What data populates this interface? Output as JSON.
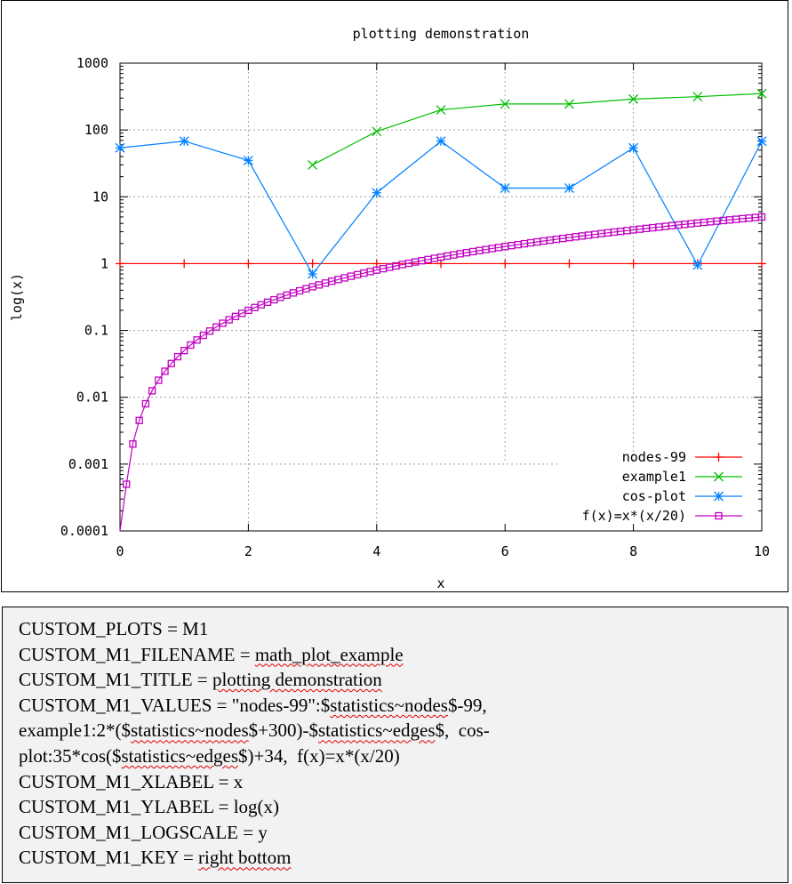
{
  "chart_data": {
    "type": "line",
    "title": "plotting demonstration",
    "xlabel": "x",
    "ylabel": "log(x)",
    "xlim": [
      0,
      10
    ],
    "ylim": [
      0.0001,
      1000
    ],
    "yscale": "log",
    "grid": true,
    "legend_position": "bottom-right",
    "x_ticks": [
      "0",
      "2",
      "4",
      "6",
      "8",
      "10"
    ],
    "y_ticks": [
      "0.0001",
      "0.001",
      "0.01",
      "0.1",
      "1",
      "10",
      "100",
      "1000"
    ],
    "series": [
      {
        "name": "nodes-99",
        "color": "#ff0000",
        "marker": "plus",
        "x": [
          0,
          1,
          2,
          3,
          4,
          5,
          6,
          7,
          8,
          9,
          10
        ],
        "y": [
          1,
          1,
          1,
          1,
          1,
          1,
          1,
          1,
          1,
          1,
          1
        ]
      },
      {
        "name": "example1",
        "color": "#00c000",
        "marker": "cross",
        "x": [
          3,
          4,
          5,
          6,
          7,
          8,
          9,
          10
        ],
        "y": [
          30,
          95,
          200,
          245,
          245,
          290,
          315,
          350
        ]
      },
      {
        "name": "cos-plot",
        "color": "#0080ff",
        "marker": "star",
        "x": [
          0,
          1,
          2,
          3,
          4,
          5,
          6,
          7,
          8,
          9,
          10
        ],
        "y": [
          54,
          68,
          35,
          0.7,
          11.5,
          68,
          13.5,
          13.5,
          54,
          0.95,
          68
        ]
      },
      {
        "name": "f(x)=x*(x/20)",
        "color": "#c000c0",
        "marker": "square",
        "function": "x*(x/20)",
        "samples": 100
      }
    ]
  },
  "config": {
    "lines": [
      [
        {
          "t": "CUSTOM_PLOTS = M1"
        }
      ],
      [
        {
          "t": "CUSTOM_M1_FILENAME = "
        },
        {
          "t": "math_plot_example",
          "s": true
        }
      ],
      [
        {
          "t": "CUSTOM_M1_TITLE = "
        },
        {
          "t": "plotting demonstration",
          "s": true
        }
      ],
      [
        {
          "t": "CUSTOM_M1_VALUES = \"nodes-99\":$"
        },
        {
          "t": "statistics~nodes",
          "s": true
        },
        {
          "t": "$-99,"
        }
      ],
      [
        {
          "t": "example1:2*($"
        },
        {
          "t": "statistics~nodes",
          "s": true
        },
        {
          "t": "$+300)-$"
        },
        {
          "t": "statistics~edges",
          "s": true
        },
        {
          "t": "$,  cos-"
        }
      ],
      [
        {
          "t": "plot:35*cos($"
        },
        {
          "t": "statistics~edges",
          "s": true
        },
        {
          "t": "$)+34,  f(x)=x*(x/20)"
        }
      ],
      [
        {
          "t": "CUSTOM_M1_XLABEL = x"
        }
      ],
      [
        {
          "t": "CUSTOM_M1_YLABEL = log(x)"
        }
      ],
      [
        {
          "t": "CUSTOM_M1_LOGSCALE = y"
        }
      ],
      [
        {
          "t": "CUSTOM_M1_KEY = "
        },
        {
          "t": "right bottom",
          "s": true
        }
      ]
    ]
  }
}
